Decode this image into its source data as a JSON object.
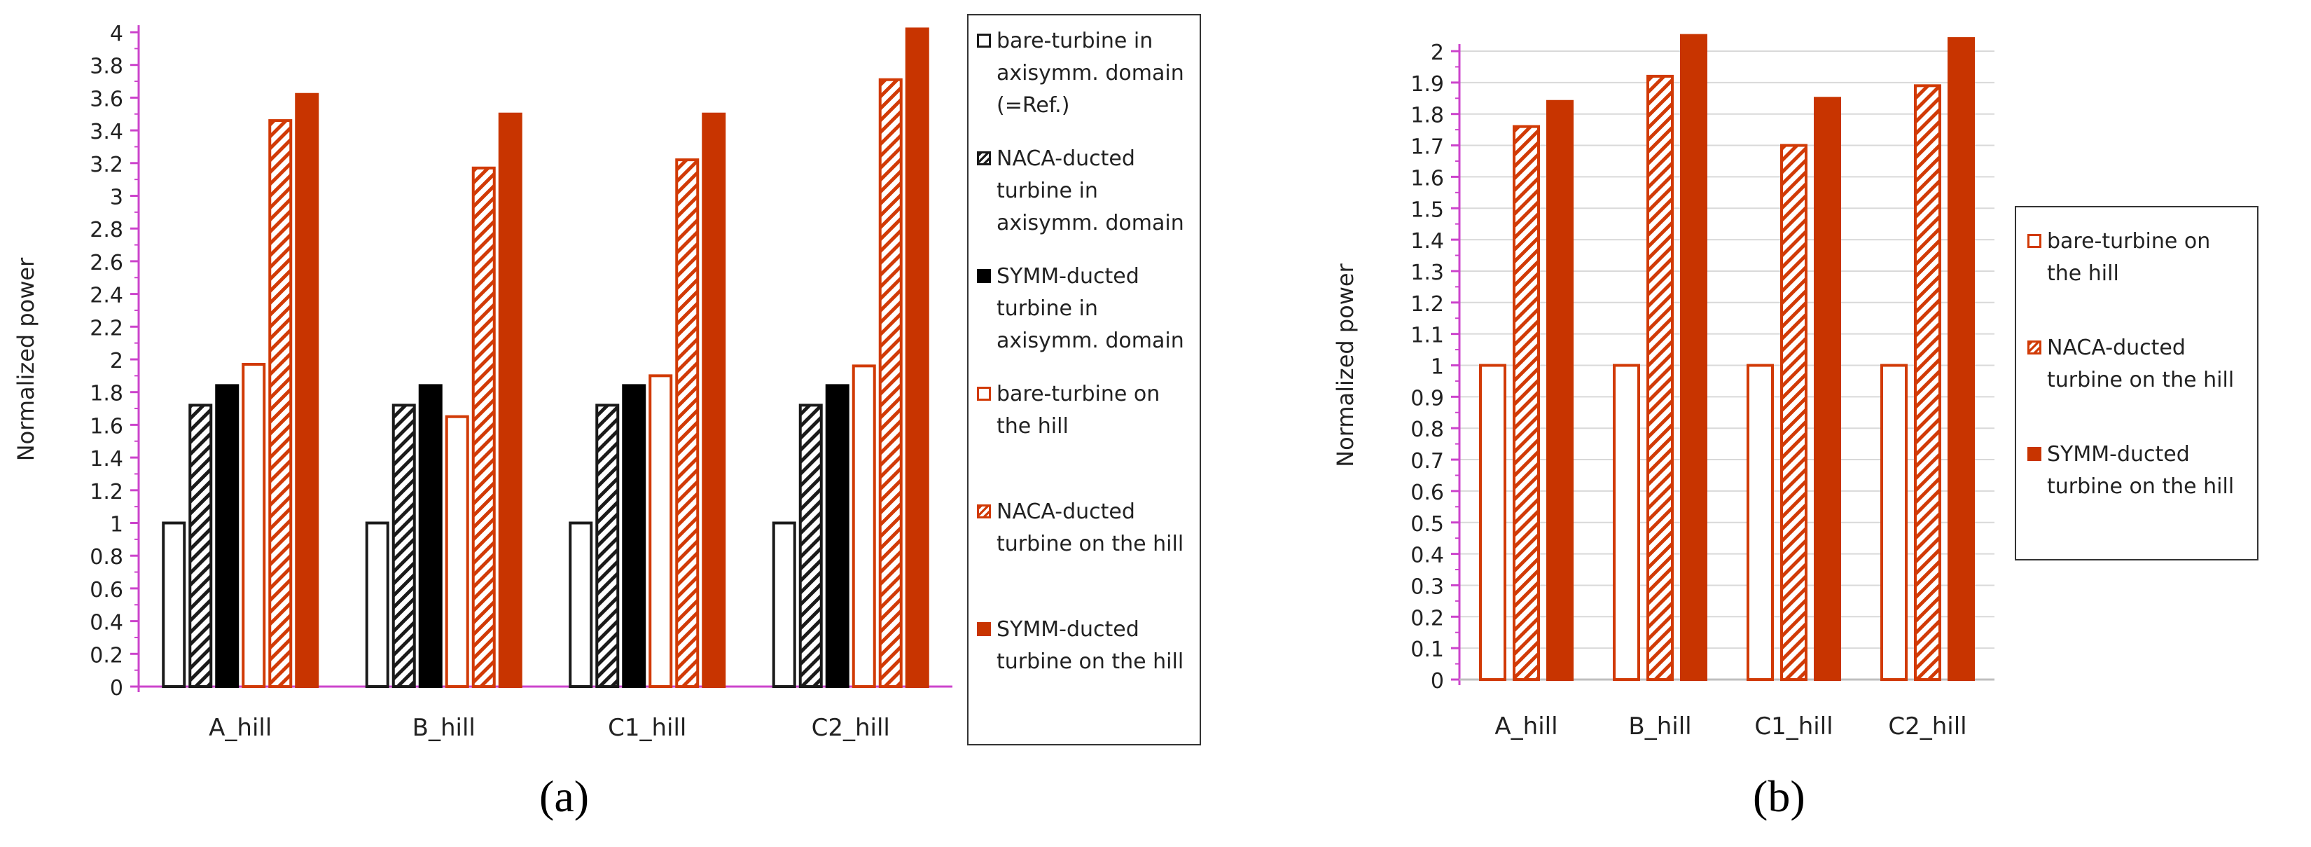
{
  "colors": {
    "black": "#1a1a1a",
    "orange": "#d13a06",
    "orange_fill": "#c83400",
    "axis": "#cc44cc",
    "grid": "#d9d9d9"
  },
  "panel_labels": {
    "a": "(a)",
    "b": "(b)"
  },
  "chart_data": [
    {
      "type": "bar",
      "ylabel": "Normalized power",
      "xlabel": "",
      "ylim": [
        0,
        4
      ],
      "ytick_step": 0.2,
      "yticks": [
        "0",
        "0.2",
        "0.4",
        "0.6",
        "0.8",
        "1",
        "1.2",
        "1.4",
        "1.6",
        "1.8",
        "2",
        "2.2",
        "2.4",
        "2.6",
        "2.8",
        "3",
        "3.2",
        "3.4",
        "3.6",
        "3.8",
        "4"
      ],
      "categories": [
        "A_hill",
        "B_hill",
        "C1_hill",
        "C2_hill"
      ],
      "series": [
        {
          "name": "bare-turbine in axisymm. domain (=Ref.)",
          "style": "bare",
          "values": [
            1.0,
            1.0,
            1.0,
            1.0
          ]
        },
        {
          "name": "NACA-ducted turbine in axisymm. domain",
          "style": "naca",
          "values": [
            1.72,
            1.72,
            1.72,
            1.72
          ]
        },
        {
          "name": "SYMM-ducted turbine in axisymm. domain",
          "style": "symm",
          "values": [
            1.84,
            1.84,
            1.84,
            1.84
          ]
        },
        {
          "name": "bare-turbine on the hill",
          "style": "hbare",
          "values": [
            1.97,
            1.65,
            1.9,
            1.96
          ]
        },
        {
          "name": "NACA-ducted turbine on the hill",
          "style": "hnaca",
          "values": [
            3.46,
            3.17,
            3.22,
            3.71
          ]
        },
        {
          "name": "SYMM-ducted turbine on the hill",
          "style": "hsymm",
          "values": [
            3.62,
            3.5,
            3.5,
            4.02
          ]
        }
      ],
      "legend_labels": [
        "bare-turbine in axisymm. domain (=Ref.)",
        "NACA-ducted turbine in axisymm. domain",
        "SYMM-ducted turbine in axisymm. domain",
        "bare-turbine on the hill",
        "NACA-ducted turbine on the hill",
        "SYMM-ducted turbine on the hill"
      ],
      "legend_position": "right",
      "grid": false
    },
    {
      "type": "bar",
      "ylabel": "Normalized power",
      "xlabel": "",
      "ylim": [
        0,
        2
      ],
      "ytick_step": 0.1,
      "yticks": [
        "0",
        "0.1",
        "0.2",
        "0.3",
        "0.4",
        "0.5",
        "0.6",
        "0.7",
        "0.8",
        "0.9",
        "1",
        "1.1",
        "1.2",
        "1.3",
        "1.4",
        "1.5",
        "1.6",
        "1.7",
        "1.8",
        "1.9",
        "2"
      ],
      "categories": [
        "A_hill",
        "B_hill",
        "C1_hill",
        "C2_hill"
      ],
      "series": [
        {
          "name": "bare-turbine on the hill",
          "style": "hbare",
          "values": [
            1.0,
            1.0,
            1.0,
            1.0
          ]
        },
        {
          "name": "NACA-ducted turbine on the hill",
          "style": "hnaca",
          "values": [
            1.76,
            1.92,
            1.7,
            1.89
          ]
        },
        {
          "name": "SYMM-ducted turbine on the hill",
          "style": "hsymm",
          "values": [
            1.84,
            2.05,
            1.85,
            2.04
          ]
        }
      ],
      "legend_labels": [
        "bare-turbine on the hill",
        "NACA-ducted turbine on the hill",
        "SYMM-ducted turbine on the hill"
      ],
      "legend_position": "right",
      "grid": true
    }
  ]
}
